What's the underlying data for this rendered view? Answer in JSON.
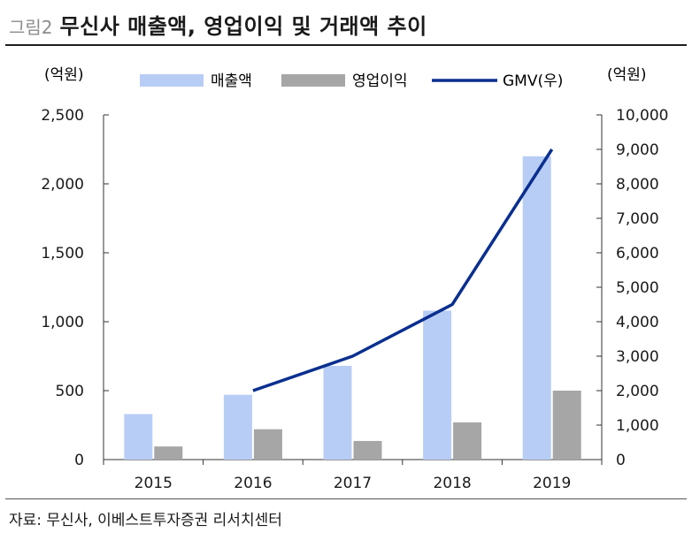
{
  "figure": {
    "number": "그림2",
    "title": "무신사 매출액, 영업이익 및 거래액 추이",
    "source": "자료: 무신사, 이베스트투자증권 리서치센터"
  },
  "colors": {
    "revenue": "#b8cdf5",
    "operating_profit": "#a6a6a6",
    "gmv": "#0a2f8f",
    "axis": "#333333"
  },
  "chart_data": {
    "type": "bar",
    "categories": [
      "2015",
      "2016",
      "2017",
      "2018",
      "2019"
    ],
    "left_axis": {
      "unit_label": "(억원)",
      "ylim": [
        0,
        2500
      ],
      "ticks": [
        "0",
        "500",
        "1,000",
        "1,500",
        "2,000",
        "2,500"
      ]
    },
    "right_axis": {
      "unit_label": "(억원)",
      "ylim": [
        0,
        10000
      ],
      "ticks": [
        "0",
        "1,000",
        "2,000",
        "3,000",
        "4,000",
        "5,000",
        "6,000",
        "7,000",
        "8,000",
        "9,000",
        "10,000"
      ]
    },
    "series": [
      {
        "name": "매출액",
        "type": "bar",
        "axis": "left",
        "values": [
          330,
          470,
          680,
          1080,
          2200
        ]
      },
      {
        "name": "영업이익",
        "type": "bar",
        "axis": "left",
        "values": [
          95,
          220,
          135,
          270,
          500
        ]
      },
      {
        "name": "GMV(우)",
        "type": "line",
        "axis": "right",
        "values": [
          null,
          2000,
          3000,
          4500,
          9000
        ]
      }
    ],
    "legend": "top",
    "grid": false
  }
}
